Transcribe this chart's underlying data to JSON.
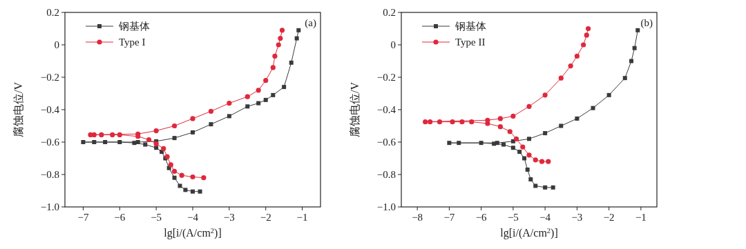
{
  "chart_data": [
    {
      "type": "line",
      "xlabel": "lg[i/(A/cm$^{2}$)]",
      "ylabel": "腐蚀电位/V",
      "annotations": [
        "(a)"
      ],
      "xlim": [
        -7.5,
        -0.5
      ],
      "ylim": [
        -1.0,
        0.2
      ],
      "xticks": [
        {
          "value": -7,
          "label": "−7"
        },
        {
          "value": -6,
          "label": "−6"
        },
        {
          "value": -5,
          "label": "−5"
        },
        {
          "value": -4,
          "label": "−4"
        },
        {
          "value": -3,
          "label": "−3"
        },
        {
          "value": -2,
          "label": "−2"
        },
        {
          "value": -1,
          "label": "−1"
        }
      ],
      "yticks": [
        {
          "value": -1.0,
          "label": "−1.0"
        },
        {
          "value": -0.8,
          "label": "−0.8"
        },
        {
          "value": -0.6,
          "label": "−0.6"
        },
        {
          "value": -0.4,
          "label": "−0.4"
        },
        {
          "value": -0.2,
          "label": "−0.2"
        },
        0,
        {
          "value": 0.2,
          "label": "0.2"
        }
      ],
      "grid": false,
      "legend": "top left",
      "line_style": "solid",
      "series": [
        {
          "name": "钢基体",
          "color": "#3a3a3a",
          "marker": "square",
          "x": [
            -3.8,
            -4.0,
            -4.2,
            -4.35,
            -4.5,
            -4.65,
            -4.75,
            -4.85,
            -5.0,
            -5.3,
            -5.6,
            -6.0,
            -6.4,
            -6.7,
            -7.0,
            -5.5,
            -5.0,
            -4.5,
            -4.0,
            -3.5,
            -3.0,
            -2.5,
            -2.2,
            -2.0,
            -1.8,
            -1.5,
            -1.3,
            -1.15,
            -1.1
          ],
          "values": [
            -0.905,
            -0.905,
            -0.895,
            -0.87,
            -0.82,
            -0.76,
            -0.7,
            -0.66,
            -0.635,
            -0.615,
            -0.605,
            -0.6,
            -0.6,
            -0.6,
            -0.6,
            -0.6,
            -0.595,
            -0.575,
            -0.54,
            -0.49,
            -0.44,
            -0.38,
            -0.36,
            -0.34,
            -0.31,
            -0.26,
            -0.11,
            0.04,
            0.09
          ]
        },
        {
          "name": "Type I",
          "color": "#e0283c",
          "marker": "circle",
          "x": [
            -3.7,
            -4.0,
            -4.3,
            -4.5,
            -4.6,
            -4.7,
            -4.8,
            -5.0,
            -5.2,
            -5.5,
            -6.0,
            -6.2,
            -6.5,
            -6.7,
            -6.8,
            -5.5,
            -5.0,
            -4.5,
            -4.0,
            -3.5,
            -3.0,
            -2.5,
            -2.2,
            -2.0,
            -1.8,
            -1.75,
            -1.65,
            -1.6,
            -1.55
          ],
          "values": [
            -0.82,
            -0.815,
            -0.805,
            -0.78,
            -0.74,
            -0.69,
            -0.64,
            -0.61,
            -0.585,
            -0.565,
            -0.555,
            -0.555,
            -0.555,
            -0.555,
            -0.555,
            -0.55,
            -0.53,
            -0.5,
            -0.455,
            -0.41,
            -0.36,
            -0.32,
            -0.28,
            -0.22,
            -0.14,
            -0.07,
            0.0,
            0.04,
            0.09
          ]
        }
      ]
    },
    {
      "type": "line",
      "xlabel": "lg[i/(A/cm$^{2}$)]",
      "ylabel": "腐蚀电位/V",
      "annotations": [
        "(b)"
      ],
      "xlim": [
        -8.5,
        -0.5
      ],
      "ylim": [
        -1.0,
        0.2
      ],
      "xticks": [
        {
          "value": -8,
          "label": "−8"
        },
        {
          "value": -7,
          "label": "−7"
        },
        {
          "value": -6,
          "label": "−6"
        },
        {
          "value": -5,
          "label": "−5"
        },
        {
          "value": -4,
          "label": "−4"
        },
        {
          "value": -3,
          "label": "−3"
        },
        {
          "value": -2,
          "label": "−2"
        },
        {
          "value": -1,
          "label": "−1"
        }
      ],
      "yticks": [
        {
          "value": -1.0,
          "label": "−1.0"
        },
        {
          "value": -0.8,
          "label": "−0.8"
        },
        {
          "value": -0.6,
          "label": "−0.6"
        },
        {
          "value": -0.4,
          "label": "−0.4"
        },
        {
          "value": -0.2,
          "label": "−0.2"
        },
        0,
        {
          "value": 0.2,
          "label": "0.2"
        }
      ],
      "grid": false,
      "legend": "top left",
      "line_style": "solid",
      "series": [
        {
          "name": "钢基体",
          "color": "#3a3a3a",
          "marker": "square",
          "x": [
            -3.75,
            -4.0,
            -4.3,
            -4.45,
            -4.55,
            -4.65,
            -4.8,
            -5.0,
            -5.3,
            -5.6,
            -6.0,
            -6.7,
            -7.0,
            -5.5,
            -5.0,
            -4.5,
            -4.0,
            -3.5,
            -3.0,
            -2.5,
            -2.0,
            -1.5,
            -1.3,
            -1.2,
            -1.1
          ],
          "values": [
            -0.88,
            -0.88,
            -0.87,
            -0.83,
            -0.77,
            -0.7,
            -0.66,
            -0.635,
            -0.615,
            -0.61,
            -0.605,
            -0.605,
            -0.605,
            -0.605,
            -0.595,
            -0.58,
            -0.545,
            -0.5,
            -0.455,
            -0.39,
            -0.31,
            -0.205,
            -0.1,
            -0.02,
            0.09
          ]
        },
        {
          "name": "Type II",
          "color": "#e0283c",
          "marker": "circle",
          "x": [
            -3.9,
            -4.1,
            -4.3,
            -4.5,
            -4.7,
            -4.9,
            -5.1,
            -5.4,
            -5.8,
            -6.3,
            -6.6,
            -6.9,
            -7.3,
            -7.6,
            -7.75,
            -5.8,
            -5.4,
            -5.0,
            -4.5,
            -4.0,
            -3.5,
            -3.2,
            -3.0,
            -2.8,
            -2.7,
            -2.65
          ],
          "values": [
            -0.72,
            -0.72,
            -0.71,
            -0.68,
            -0.63,
            -0.58,
            -0.535,
            -0.505,
            -0.485,
            -0.475,
            -0.475,
            -0.475,
            -0.475,
            -0.475,
            -0.475,
            -0.465,
            -0.455,
            -0.44,
            -0.38,
            -0.31,
            -0.205,
            -0.13,
            -0.07,
            0.0,
            0.06,
            0.1
          ]
        }
      ]
    }
  ]
}
